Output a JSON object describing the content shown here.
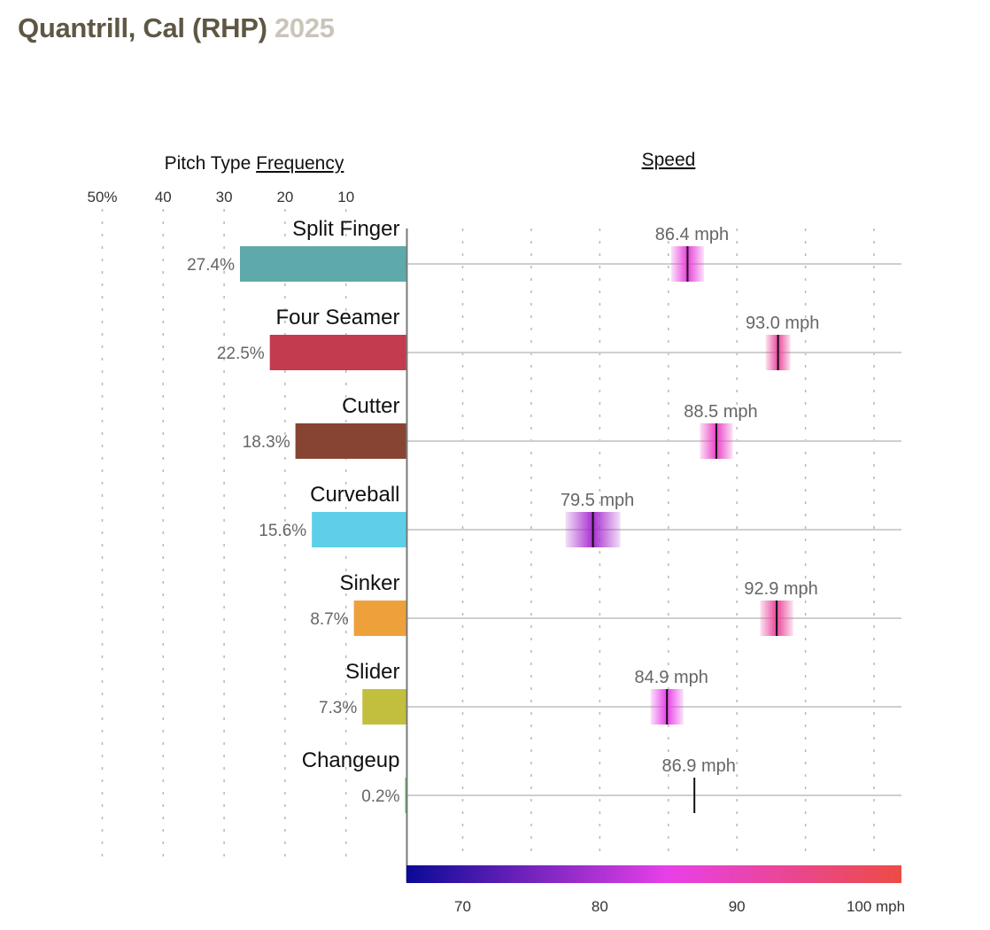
{
  "header": {
    "player": "Quantrill, Cal (RHP)",
    "year": "2025"
  },
  "chart_data": [
    {
      "type": "bar",
      "title": "Pitch Type Frequency",
      "title_plain": "Pitch Type ",
      "title_link": "Frequency",
      "orientation": "horizontal-left",
      "xlim": [
        0,
        50
      ],
      "ticks": [
        {
          "value": 50,
          "label": "50%"
        },
        {
          "value": 40,
          "label": "40"
        },
        {
          "value": 30,
          "label": "30"
        },
        {
          "value": 20,
          "label": "20"
        },
        {
          "value": 10,
          "label": "10"
        }
      ],
      "grid": true,
      "categories": [
        "Split Finger",
        "Four Seamer",
        "Cutter",
        "Curveball",
        "Sinker",
        "Slider",
        "Changeup"
      ],
      "values": [
        27.4,
        22.5,
        18.3,
        15.6,
        8.7,
        7.3,
        0.2
      ],
      "value_labels": [
        "27.4%",
        "22.5%",
        "18.3%",
        "15.6%",
        "8.7%",
        "7.3%",
        "0.2%"
      ],
      "colors": [
        "#5ea9a9",
        "#c23b4f",
        "#884433",
        "#5ecfe8",
        "#eea03a",
        "#c1bf3d",
        "#5cc65a"
      ]
    },
    {
      "type": "scatter",
      "title": "Speed",
      "xlim": [
        65.9,
        102
      ],
      "ticks": [
        {
          "value": 70,
          "label": "70"
        },
        {
          "value": 80,
          "label": "80"
        },
        {
          "value": 90,
          "label": "90"
        },
        {
          "value": 100,
          "label": "100 mph"
        }
      ],
      "gridlines": [
        70,
        75,
        80,
        85,
        90,
        95,
        100
      ],
      "grid": true,
      "categories": [
        "Split Finger",
        "Four Seamer",
        "Cutter",
        "Curveball",
        "Sinker",
        "Slider",
        "Changeup"
      ],
      "values": [
        86.4,
        93.0,
        88.5,
        79.5,
        92.9,
        84.9,
        86.9
      ],
      "value_labels": [
        "86.4 mph",
        "93.0 mph",
        "88.5 mph",
        "79.5 mph",
        "92.9 mph",
        "84.9 mph",
        "86.9 mph"
      ],
      "spread_mph": [
        1.2,
        0.9,
        1.2,
        2.0,
        1.2,
        1.2,
        0
      ],
      "colorscale": {
        "range": [
          65.9,
          102
        ],
        "stops": [
          {
            "value": 65.9,
            "color": "#0a0a96"
          },
          {
            "value": 85,
            "color": "#e840e8"
          },
          {
            "value": 102,
            "color": "#ec4c44"
          }
        ]
      }
    }
  ]
}
